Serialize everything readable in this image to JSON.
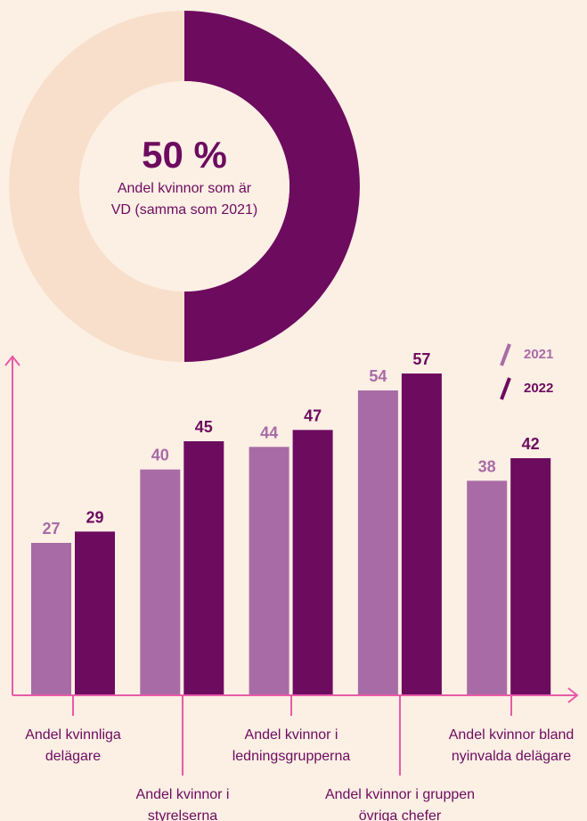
{
  "chart_data": [
    {
      "type": "donut",
      "values": [
        50,
        50
      ],
      "value_labels": [
        "50 %",
        null
      ],
      "colors": [
        "#6d0b5f",
        "#f8dfcb"
      ],
      "annotation": "Andel kvinnor som är VD (samma som 2021)"
    },
    {
      "type": "bar",
      "categories": [
        "Andel kvinnliga delägare",
        "Andel kvinnor i styrelserna",
        "Andel kvinnor i ledningsgrupperna",
        "Andel kvinnor i gruppen övriga chefer",
        "Andel kvinnor bland nyinvalda delägare"
      ],
      "series": [
        {
          "name": "2021",
          "color": "#a96ba6",
          "values": [
            27,
            40,
            44,
            54,
            38
          ]
        },
        {
          "name": "2022",
          "color": "#6d0b5f",
          "values": [
            29,
            45,
            47,
            57,
            42
          ]
        }
      ],
      "ylim": [
        0,
        60
      ],
      "legend": "top-right",
      "axis_color": "#e85aa8"
    }
  ]
}
